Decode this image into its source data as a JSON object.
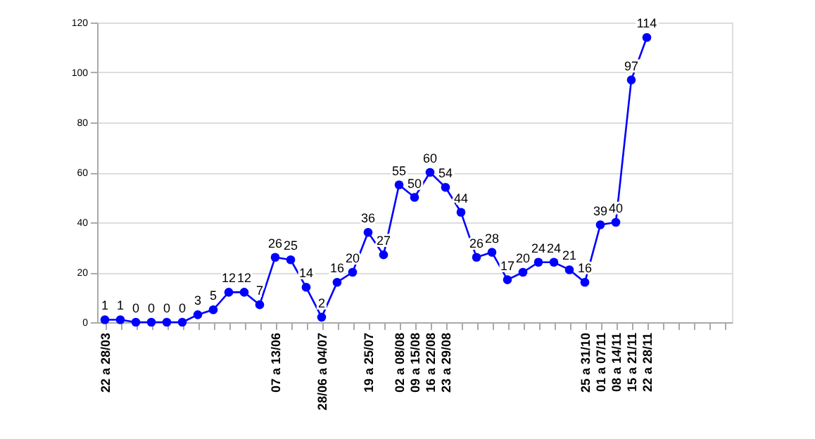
{
  "chart_data": {
    "type": "line",
    "categories": [
      "22 a 28/03",
      null,
      null,
      null,
      null,
      null,
      null,
      null,
      null,
      null,
      null,
      "07 a 13/06",
      null,
      null,
      "28/06 a 04/07",
      null,
      null,
      "19 a 25/07",
      null,
      "02 a 08/08",
      "09 a 15/08",
      "16 a 22/08",
      "23 a 29/08",
      null,
      null,
      null,
      null,
      null,
      null,
      null,
      null,
      "25 a 31/10",
      "01 a 07/11",
      "08 a 14/11",
      "15 a 21/11",
      "22 a 28/11",
      null,
      null,
      null,
      null,
      null
    ],
    "series": [
      {
        "color": "#0000ff",
        "values": [
          1,
          1,
          0,
          0,
          0,
          0,
          3,
          5,
          12,
          12,
          7,
          26,
          25,
          14,
          2,
          16,
          20,
          36,
          27,
          55,
          50,
          60,
          54,
          44,
          26,
          28,
          17,
          20,
          24,
          24,
          21,
          16,
          39,
          40,
          97,
          114,
          null,
          null,
          null,
          null,
          null
        ]
      }
    ],
    "ylim": [
      0,
      120
    ],
    "yticks": [
      0,
      20,
      40,
      60,
      80,
      100,
      120
    ],
    "grid": "y",
    "marker": "circle",
    "data_labels": true
  }
}
